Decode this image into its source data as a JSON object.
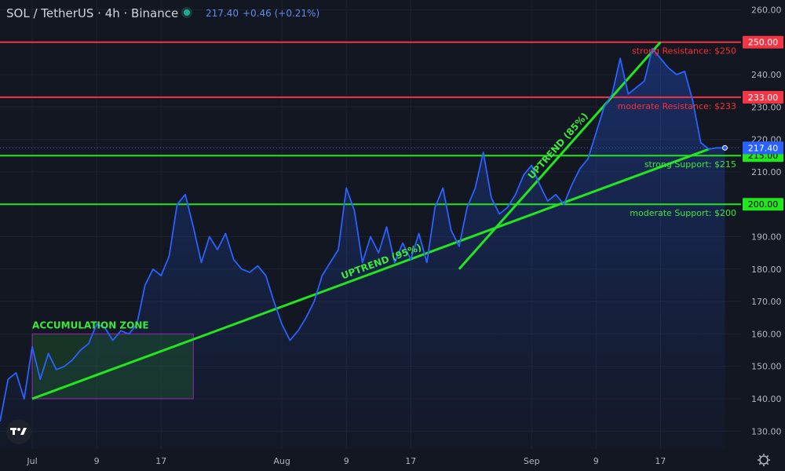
{
  "header": {
    "symbol": "SOL / TetherUS · 4h · Binance",
    "price": "217.40",
    "change": "+0.46 (+0.21%)"
  },
  "colors": {
    "background": "#131722",
    "grid": "#1e2230",
    "price_line": "#2962ff",
    "resistance": "#f23645",
    "support": "#22e61e",
    "zone_fill": "#1f6b2a",
    "zone_border": "#9c27b0",
    "axis_text": "#b2b5be",
    "label_resistance": "#ff2d2d",
    "label_support": "#3be83b"
  },
  "chart_data": {
    "type": "line",
    "x_tick_labels": [
      "Jul",
      "9",
      "17",
      "Aug",
      "9",
      "17",
      "Sep",
      "9",
      "17"
    ],
    "y_ticks": [
      130,
      140,
      150,
      160,
      170,
      180,
      190,
      200,
      210,
      220,
      230,
      240,
      250,
      260
    ],
    "ylim": [
      124.5,
      263
    ],
    "xlim": [
      "2024-06-27",
      "2024-09-27"
    ],
    "series": [
      {
        "x": [
          "2024-06-27",
          "2024-06-28",
          "2024-06-29",
          "2024-06-30",
          "2024-07-01",
          "2024-07-02",
          "2024-07-03",
          "2024-07-04",
          "2024-07-05",
          "2024-07-06",
          "2024-07-07",
          "2024-07-08",
          "2024-07-09",
          "2024-07-10",
          "2024-07-11",
          "2024-07-12",
          "2024-07-13",
          "2024-07-14",
          "2024-07-15",
          "2024-07-16",
          "2024-07-17",
          "2024-07-18",
          "2024-07-19",
          "2024-07-20",
          "2024-07-21",
          "2024-07-22",
          "2024-07-23",
          "2024-07-24",
          "2024-07-25",
          "2024-07-26",
          "2024-07-27",
          "2024-07-28",
          "2024-07-29",
          "2024-07-30",
          "2024-07-31",
          "2024-08-01",
          "2024-08-02",
          "2024-08-03",
          "2024-08-04",
          "2024-08-05",
          "2024-08-06",
          "2024-08-07",
          "2024-08-08",
          "2024-08-09",
          "2024-08-10",
          "2024-08-11",
          "2024-08-12",
          "2024-08-13",
          "2024-08-14",
          "2024-08-15",
          "2024-08-16",
          "2024-08-17",
          "2024-08-18",
          "2024-08-19",
          "2024-08-20",
          "2024-08-21",
          "2024-08-22",
          "2024-08-23",
          "2024-08-24",
          "2024-08-25",
          "2024-08-26",
          "2024-08-27",
          "2024-08-28",
          "2024-08-29",
          "2024-08-30",
          "2024-08-31",
          "2024-09-01",
          "2024-09-02",
          "2024-09-03",
          "2024-09-04",
          "2024-09-05",
          "2024-09-06",
          "2024-09-07",
          "2024-09-08",
          "2024-09-09",
          "2024-09-10",
          "2024-09-11",
          "2024-09-12",
          "2024-09-13",
          "2024-09-14",
          "2024-09-15",
          "2024-09-16",
          "2024-09-17",
          "2024-09-18",
          "2024-09-19",
          "2024-09-20",
          "2024-09-21",
          "2024-09-22",
          "2024-09-23",
          "2024-09-24",
          "2024-09-25"
        ],
        "y": [
          133,
          146,
          148,
          140,
          156,
          146,
          154,
          149,
          150,
          152,
          155,
          157,
          163,
          162,
          158,
          161,
          160,
          163,
          175,
          180,
          178,
          184,
          200,
          203,
          193,
          182,
          190,
          186,
          191,
          183,
          180,
          179,
          181,
          178,
          170,
          163,
          158,
          161,
          165,
          170,
          178,
          182,
          186,
          205,
          198,
          182,
          190,
          185,
          193,
          182,
          188,
          183,
          191,
          182,
          199,
          205,
          192,
          187,
          199,
          205,
          216,
          202,
          197,
          199,
          203,
          209,
          212,
          206,
          201,
          203,
          200,
          206,
          211,
          214,
          222,
          230,
          234,
          245,
          234,
          236,
          238,
          248,
          245,
          242,
          240,
          241,
          232,
          219,
          217,
          217.4,
          217.4
        ]
      }
    ],
    "levels": [
      {
        "name": "strong Resistance",
        "value": 250,
        "label": "strong Resistance: $250",
        "axis_label": "250.00",
        "kind": "resistance"
      },
      {
        "name": "moderate Resistance",
        "value": 233,
        "label": "moderate Resistance: $233",
        "axis_label": "233.00",
        "kind": "resistance"
      },
      {
        "name": "strong Support",
        "value": 215,
        "label": "strong Support: $215",
        "axis_label": "215.00",
        "kind": "support"
      },
      {
        "name": "moderate Support",
        "value": 200,
        "label": "moderate Support: $200",
        "axis_label": "200.00",
        "kind": "support"
      }
    ],
    "current_price": {
      "value": 217.4,
      "axis_label": "217.40"
    },
    "trendlines": [
      {
        "label": "UPTREND (95%)",
        "from": {
          "x": "2024-07-01",
          "y": 140
        },
        "to": {
          "x": "2024-09-23",
          "y": 217
        }
      },
      {
        "label": "UPTREND (85%)",
        "from": {
          "x": "2024-08-23",
          "y": 180
        },
        "to": {
          "x": "2024-09-17",
          "y": 250
        }
      }
    ],
    "zone": {
      "label": "ACCUMULATION ZONE",
      "x_start": "2024-07-01",
      "x_end": "2024-07-21",
      "y_low": 140,
      "y_high": 160
    }
  }
}
